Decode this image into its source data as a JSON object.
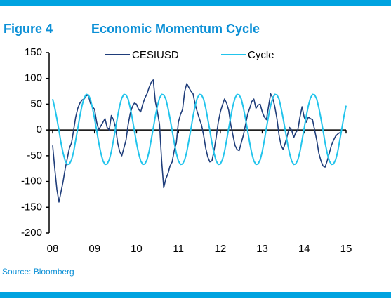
{
  "chart_data": {
    "type": "line",
    "figure_label": "Figure 4",
    "title": "Economic Momentum Cycle",
    "source": "Source: Bloomberg",
    "x": [
      2008,
      2008.05,
      2008.1,
      2008.15,
      2008.2,
      2008.25,
      2008.3,
      2008.35,
      2008.4,
      2008.45,
      2008.5,
      2008.55,
      2008.6,
      2008.65,
      2008.7,
      2008.75,
      2008.8,
      2008.85,
      2008.9,
      2008.95,
      2009,
      2009.05,
      2009.1,
      2009.15,
      2009.2,
      2009.25,
      2009.3,
      2009.35,
      2009.4,
      2009.45,
      2009.5,
      2009.55,
      2009.6,
      2009.65,
      2009.7,
      2009.75,
      2009.8,
      2009.85,
      2009.9,
      2009.95,
      2010,
      2010.05,
      2010.1,
      2010.15,
      2010.2,
      2010.25,
      2010.3,
      2010.35,
      2010.4,
      2010.45,
      2010.5,
      2010.55,
      2010.6,
      2010.65,
      2010.7,
      2010.75,
      2010.8,
      2010.85,
      2010.9,
      2010.95,
      2011,
      2011.05,
      2011.1,
      2011.15,
      2011.2,
      2011.25,
      2011.3,
      2011.35,
      2011.4,
      2011.45,
      2011.5,
      2011.55,
      2011.6,
      2011.65,
      2011.7,
      2011.75,
      2011.8,
      2011.85,
      2011.9,
      2011.95,
      2012,
      2012.05,
      2012.1,
      2012.15,
      2012.2,
      2012.25,
      2012.3,
      2012.35,
      2012.4,
      2012.45,
      2012.5,
      2012.55,
      2012.6,
      2012.65,
      2012.7,
      2012.75,
      2012.8,
      2012.85,
      2012.9,
      2012.95,
      2013,
      2013.05,
      2013.1,
      2013.15,
      2013.2,
      2013.25,
      2013.3,
      2013.35,
      2013.4,
      2013.45,
      2013.5,
      2013.55,
      2013.6,
      2013.65,
      2013.7,
      2013.75,
      2013.8,
      2013.85,
      2013.9,
      2013.95,
      2014,
      2014.05,
      2014.1,
      2014.15,
      2014.2,
      2014.25,
      2014.3,
      2014.35,
      2014.4,
      2014.45,
      2014.5,
      2014.55,
      2014.6,
      2014.65,
      2014.7,
      2014.75,
      2014.8,
      2014.85,
      2014.9,
      2014.95,
      2015
    ],
    "series": [
      {
        "name": "CESIUSD",
        "color": "#1f3d7a",
        "values": [
          -30,
          -75,
          -115,
          -140,
          -120,
          -100,
          -75,
          -55,
          -35,
          -25,
          0,
          25,
          42,
          52,
          58,
          60,
          66,
          68,
          52,
          45,
          40,
          15,
          0,
          8,
          15,
          22,
          5,
          0,
          28,
          20,
          5,
          -25,
          -42,
          -50,
          -35,
          -20,
          10,
          32,
          45,
          52,
          50,
          40,
          35,
          50,
          62,
          70,
          82,
          92,
          97,
          55,
          35,
          10,
          -60,
          -112,
          -95,
          -85,
          -70,
          -62,
          -40,
          -25,
          15,
          30,
          40,
          75,
          90,
          82,
          75,
          70,
          50,
          35,
          22,
          10,
          -10,
          -35,
          -52,
          -62,
          -60,
          -40,
          -15,
          15,
          35,
          48,
          60,
          52,
          38,
          10,
          -10,
          -30,
          -38,
          -40,
          -25,
          -10,
          10,
          30,
          42,
          55,
          60,
          42,
          48,
          50,
          35,
          25,
          20,
          45,
          70,
          62,
          45,
          22,
          -10,
          -30,
          -38,
          -25,
          -10,
          5,
          0,
          -15,
          -5,
          0,
          25,
          45,
          25,
          15,
          25,
          22,
          20,
          0,
          -20,
          -45,
          -60,
          -70,
          -72,
          -60,
          -45,
          -30,
          -20,
          -12,
          -8,
          -5,
          null,
          null,
          null
        ]
      },
      {
        "name": "Cycle",
        "color": "#22c4ec",
        "values": [
          60,
          43,
          22,
          -1,
          -25,
          -45,
          -60,
          -67,
          -66,
          -58,
          -42,
          -20,
          3,
          27,
          47,
          62,
          69,
          68,
          60,
          43,
          22,
          -1,
          -25,
          -45,
          -60,
          -67,
          -66,
          -58,
          -42,
          -20,
          3,
          27,
          47,
          62,
          69,
          68,
          60,
          43,
          22,
          -1,
          -25,
          -45,
          -60,
          -67,
          -66,
          -58,
          -42,
          -20,
          3,
          27,
          47,
          62,
          69,
          68,
          60,
          43,
          22,
          -1,
          -25,
          -45,
          -60,
          -67,
          -66,
          -58,
          -42,
          -20,
          3,
          27,
          47,
          62,
          69,
          68,
          60,
          43,
          22,
          -1,
          -25,
          -45,
          -60,
          -67,
          -66,
          -58,
          -42,
          -20,
          3,
          27,
          47,
          62,
          69,
          68,
          60,
          43,
          22,
          -1,
          -25,
          -45,
          -60,
          -67,
          -66,
          -58,
          -42,
          -20,
          3,
          27,
          47,
          62,
          69,
          68,
          60,
          43,
          22,
          -1,
          -25,
          -45,
          -60,
          -67,
          -66,
          -58,
          -42,
          -20,
          3,
          27,
          47,
          62,
          69,
          68,
          60,
          43,
          22,
          -1,
          -25,
          -45,
          -60,
          -67,
          -66,
          -58,
          -42,
          -20,
          3,
          27,
          47
        ]
      }
    ],
    "xlim": [
      2008,
      2015
    ],
    "xticks": [
      {
        "value": 2008,
        "label": "08"
      },
      {
        "value": 2009,
        "label": "09"
      },
      {
        "value": 2010,
        "label": "10"
      },
      {
        "value": 2011,
        "label": "11"
      },
      {
        "value": 2012,
        "label": "12"
      },
      {
        "value": 2013,
        "label": "13"
      },
      {
        "value": 2014,
        "label": "14"
      },
      {
        "value": 2015,
        "label": "15"
      }
    ],
    "ylim": [
      -200,
      150
    ],
    "yticks": [
      150,
      100,
      50,
      0,
      -50,
      -100,
      -150,
      -200
    ],
    "legend": "top"
  }
}
